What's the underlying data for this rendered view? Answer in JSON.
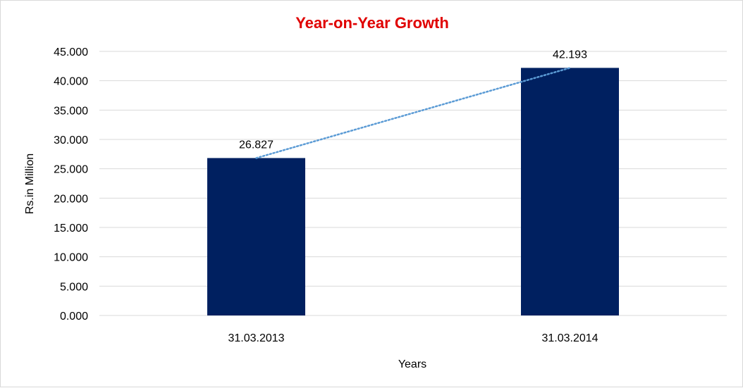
{
  "chart_data": {
    "type": "bar",
    "title": "Year-on-Year Growth",
    "xlabel": "Years",
    "ylabel": "Rs.in Million",
    "categories": [
      "31.03.2013",
      "31.03.2014"
    ],
    "values": [
      26.827,
      42.193
    ],
    "value_labels": [
      "26.827",
      "42.193"
    ],
    "ylim": [
      0,
      45
    ],
    "yticks": [
      0,
      5,
      10,
      15,
      20,
      25,
      30,
      35,
      40,
      45
    ],
    "ytick_labels": [
      "0.000",
      "5.000",
      "10.000",
      "15.000",
      "20.000",
      "25.000",
      "30.000",
      "35.000",
      "40.000",
      "45.000"
    ],
    "trendline": "linear",
    "grid": true,
    "legend": "none",
    "colors": {
      "bar": "#002060",
      "title": "#e00000",
      "trendline": "#5b9bd5",
      "grid": "#d9d9d9"
    }
  }
}
